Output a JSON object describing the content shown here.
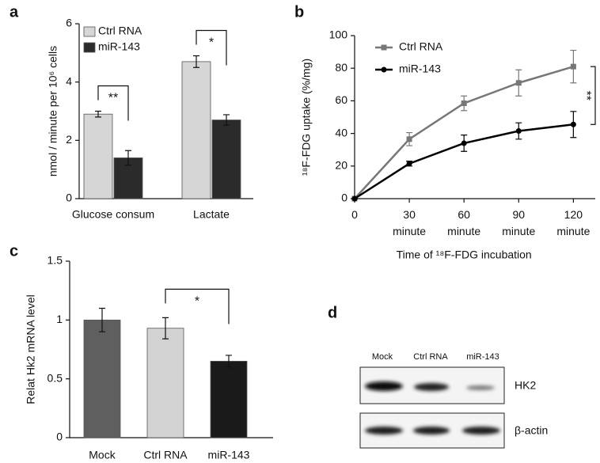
{
  "panel_labels": [
    "a",
    "b",
    "c",
    "d"
  ],
  "chart_data": [
    {
      "type": "bar",
      "ylabel": "nmol / minute per 10⁶ cells",
      "categories": [
        "Glucose consum",
        "Lactate"
      ],
      "series": [
        {
          "name": "Ctrl RNA",
          "color": "#d6d6d6",
          "values": [
            2.9,
            4.7
          ],
          "errors": [
            0.1,
            0.2
          ]
        },
        {
          "name": "miR-143",
          "color": "#2b2b2b",
          "values": [
            1.4,
            2.7
          ],
          "errors": [
            0.25,
            0.18
          ]
        }
      ],
      "ylim": [
        0,
        6
      ],
      "yticks": [
        0,
        2,
        4,
        6
      ],
      "annotations": [
        "**",
        "*"
      ],
      "legend": "upper left"
    },
    {
      "type": "line",
      "ylabel": "¹⁸F-FDG uptake (%/mg)",
      "xlabel": "Time of ¹⁸F-FDG incubation",
      "x": [
        0,
        30,
        60,
        90,
        120
      ],
      "series": [
        {
          "name": "Ctrl RNA",
          "color": "#777777",
          "marker": "square",
          "values": [
            0,
            36.5,
            58.5,
            71,
            81
          ],
          "errors": [
            0,
            4,
            4.5,
            8,
            10
          ]
        },
        {
          "name": "miR-143",
          "color": "#000000",
          "marker": "circle",
          "values": [
            0,
            21.5,
            34,
            41.5,
            45.5
          ],
          "errors": [
            0,
            1.5,
            5,
            5,
            8
          ]
        }
      ],
      "xlim": [
        0,
        132
      ],
      "ylim": [
        0,
        100
      ],
      "xticks": [
        0,
        {
          "value": 30,
          "label": "30 minute"
        },
        {
          "value": 60,
          "label": "60 minute"
        },
        {
          "value": 90,
          "label": "90 minute"
        },
        {
          "value": 120,
          "label": "120 minute"
        }
      ],
      "yticks": [
        0,
        20,
        40,
        60,
        80,
        100
      ],
      "annotations": [
        "**"
      ],
      "legend": "upper left"
    },
    {
      "type": "bar",
      "ylabel": "Relat Hk2 mRNA level",
      "categories": [
        "Mock",
        "Ctrl RNA",
        "miR-143"
      ],
      "values": [
        1.0,
        0.93,
        0.65
      ],
      "errors": [
        0.1,
        0.09,
        0.05
      ],
      "colors": [
        "#5f5f5f",
        "#d2d2d2",
        "#1a1a1a"
      ],
      "ylim": [
        0,
        1.5
      ],
      "yticks": [
        0,
        0.5,
        1,
        1.5
      ],
      "annotations": [
        "*"
      ]
    }
  ],
  "blot": {
    "lanes": [
      "Mock",
      "Ctrl RNA",
      "miR-143"
    ],
    "rows": [
      "HK2",
      "β-actin"
    ]
  }
}
